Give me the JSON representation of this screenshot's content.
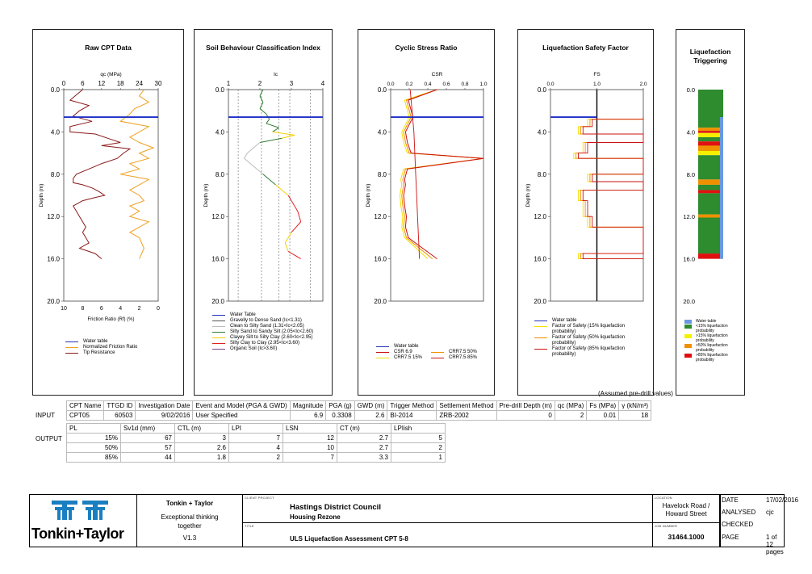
{
  "panels": {
    "raw": {
      "title": "Raw CPT Data",
      "top_axis": "qc (MPa)",
      "top_ticks": [
        "0",
        "6",
        "12",
        "18",
        "24",
        "30"
      ],
      "bottom_axis": "Friction Ratio (Rf) (%)",
      "bottom_ticks": [
        "10",
        "8",
        "6",
        "4",
        "2",
        "0"
      ]
    },
    "sbt": {
      "title": "Soil Behaviour Classification Index",
      "top_axis": "Ic",
      "top_ticks": [
        "1",
        "2",
        "3",
        "4"
      ]
    },
    "csr": {
      "title": "Cyclic Stress Ratio",
      "top_axis": "CSR",
      "top_ticks": [
        "0.0",
        "0.2",
        "0.4",
        "0.6",
        "0.8",
        "1.0"
      ]
    },
    "fs": {
      "title": "Liquefaction Safety Factor",
      "top_axis": "FS",
      "top_ticks": [
        "0.0",
        "1.0",
        "2.0"
      ]
    },
    "trig": {
      "title": "Liquefaction Triggering"
    }
  },
  "depth_label": "Depth (m)",
  "depth_ticks": [
    "0.0",
    "4.0",
    "8.0",
    "12.0",
    "16.0",
    "20.0"
  ],
  "legends": {
    "raw": [
      {
        "label": "Water table",
        "color": "#2233bb"
      },
      {
        "label": "Normalized Friction Ratio",
        "color": "#f0a020"
      },
      {
        "label": "Tip Resistance",
        "color": "#8b1a1a"
      }
    ],
    "sbt": [
      {
        "label": "Water Table",
        "color": "#2233bb"
      },
      {
        "label": "Gravelly to Dense Sand (Ic<1.31)",
        "color": "#555555"
      },
      {
        "label": "Clean to Silty Sand (1.31<Ic<2.05)",
        "color": "#bbbbbb"
      },
      {
        "label": "Silty Sand to Sandy Silt (2.05<Ic<2.60)",
        "color": "#2e7d32"
      },
      {
        "label": "Clayey Silt to Silty Clay (2.60<Ic<2.95)",
        "color": "#f5d000"
      },
      {
        "label": "Silty Clay to Clay (2.95<Ic<3.60)",
        "color": "#dd2222"
      },
      {
        "label": "Organic Soil (Ic>3.60)",
        "color": "#7b3f8a"
      }
    ],
    "csr": [
      {
        "label": "Water table",
        "color": "#2233bb"
      },
      {
        "label": "CSR 6.9",
        "color": "#cc1111"
      },
      {
        "label": "CRR7.5 15%",
        "color": "#f5e000"
      },
      {
        "label": "CRR7.5 50%",
        "color": "#f09000"
      },
      {
        "label": "CRR7.5 85%",
        "color": "#cc1111"
      }
    ],
    "fs": [
      {
        "label": "Water table",
        "color": "#2233bb"
      },
      {
        "label": "Factor of Safety (15% liquefaction probability)",
        "color": "#f5e000"
      },
      {
        "label": "Factor of Safety (50% liquefaction probability)",
        "color": "#f09000"
      },
      {
        "label": "Factor of Safety (85% liquefaction probability)",
        "color": "#cc1111"
      }
    ],
    "trig": [
      {
        "label": "Water table",
        "color": "#6a98e0"
      },
      {
        "label": "<15% liquefaction probability",
        "color": "#2e8b2e"
      },
      {
        "label": ">15% liquefaction probability",
        "color": "#f5f000"
      },
      {
        "label": ">50% liquefaction probability",
        "color": "#f09000"
      },
      {
        "label": ">85% liquefaction probability",
        "color": "#e01010"
      }
    ]
  },
  "chart_data": [
    {
      "type": "line",
      "title": "Raw CPT Data",
      "xlabel": "qc (MPa)",
      "xlabel2": "Friction Ratio (Rf) (%)",
      "ylabel": "Depth (m)",
      "xlim": [
        0,
        30
      ],
      "x2lim": [
        10,
        0
      ],
      "ylim": [
        20,
        0
      ],
      "water_table_depth": 2.6,
      "series": [
        {
          "name": "Tip Resistance",
          "x": [
            6,
            4,
            2,
            8,
            5,
            3,
            9,
            2,
            2,
            10,
            14,
            18,
            12,
            21,
            19,
            17,
            12,
            8,
            4,
            3,
            3,
            6,
            9,
            11,
            13,
            10,
            6,
            3,
            4,
            5,
            6,
            7,
            6,
            7,
            8,
            5,
            10,
            12
          ],
          "y": [
            0.0,
            0.5,
            1.0,
            1.5,
            2.0,
            2.5,
            3.0,
            3.5,
            4.0,
            4.2,
            4.6,
            5.0,
            5.3,
            5.6,
            6.0,
            6.5,
            7.0,
            7.5,
            8.0,
            8.4,
            8.8,
            9.0,
            9.3,
            9.6,
            10.0,
            10.2,
            10.5,
            11.0,
            11.5,
            12.0,
            12.5,
            13.0,
            13.5,
            14.0,
            14.5,
            15.0,
            15.5,
            16.0
          ]
        },
        {
          "name": "Normalized Friction Ratio",
          "x": [
            1.5,
            2,
            1,
            2.5,
            3,
            4,
            1,
            2,
            3,
            2,
            0.5,
            2,
            1,
            3,
            2,
            4,
            1,
            2,
            3,
            2,
            1.5,
            3,
            2,
            3,
            1,
            2,
            3,
            2,
            1.5,
            2
          ],
          "y": [
            0.0,
            0.6,
            1.2,
            1.8,
            2.3,
            3.0,
            3.5,
            4.0,
            4.5,
            5.0,
            5.5,
            6.0,
            6.5,
            7.0,
            7.5,
            8.0,
            8.5,
            9.0,
            9.5,
            10.0,
            10.5,
            11.0,
            11.5,
            12.0,
            12.5,
            13.0,
            13.5,
            14.0,
            15.0,
            16.0
          ]
        }
      ]
    },
    {
      "type": "line",
      "title": "Soil Behaviour Classification Index",
      "xlabel": "Ic",
      "ylabel": "Depth (m)",
      "xlim": [
        1,
        4
      ],
      "ylim": [
        20,
        0
      ],
      "water_table_depth": 2.6,
      "series": [
        {
          "name": "Ic",
          "x": [
            2.1,
            2.0,
            2.1,
            2.0,
            2.2,
            2.3,
            2.2,
            2.6,
            2.4,
            3.1,
            2.7,
            2.0,
            1.8,
            1.6,
            1.5,
            1.7,
            1.9,
            2.1,
            2.3,
            2.5,
            2.7,
            2.9,
            3.0,
            3.1,
            3.2,
            3.3,
            3.0,
            2.8,
            2.9,
            3.3
          ],
          "y": [
            0.0,
            0.6,
            1.2,
            1.8,
            2.3,
            2.8,
            3.2,
            3.6,
            4.0,
            4.3,
            4.6,
            5.0,
            5.5,
            6.0,
            6.5,
            7.0,
            7.5,
            8.0,
            8.5,
            9.0,
            9.5,
            10.0,
            10.5,
            11.0,
            11.5,
            12.5,
            13.5,
            14.5,
            15.3,
            16.0
          ]
        }
      ]
    },
    {
      "type": "line",
      "title": "Cyclic Stress Ratio",
      "xlabel": "CSR",
      "ylabel": "Depth (m)",
      "xlim": [
        0,
        1
      ],
      "ylim": [
        20,
        0
      ],
      "water_table_depth": 2.6,
      "series": [
        {
          "name": "CSR 6.9",
          "x": [
            0.21,
            0.23,
            0.25,
            0.26,
            0.27,
            0.28,
            0.29,
            0.3,
            0.31
          ],
          "y": [
            0,
            2,
            4,
            6,
            8,
            10,
            12,
            14,
            16
          ]
        },
        {
          "name": "CRR7.5 15%",
          "x": [
            0.5,
            0.15,
            0.2,
            0.12,
            0.14,
            0.18,
            1.0,
            0.14,
            0.11,
            0.12,
            0.1,
            0.11,
            0.13,
            0.12,
            0.15,
            0.4
          ],
          "y": [
            0,
            1,
            2.6,
            4,
            5,
            6,
            6.5,
            7.5,
            8.5,
            9,
            10,
            11,
            12,
            13,
            14,
            16
          ]
        },
        {
          "name": "CRR7.5 50%",
          "x": [
            0.5,
            0.17,
            0.22,
            0.14,
            0.16,
            0.2,
            1.0,
            0.16,
            0.13,
            0.14,
            0.12,
            0.13,
            0.15,
            0.14,
            0.17,
            0.45
          ],
          "y": [
            0,
            1,
            2.6,
            4,
            5,
            6,
            6.5,
            7.5,
            8.5,
            9,
            10,
            11,
            12,
            13,
            14,
            16
          ]
        },
        {
          "name": "CRR7.5 85%",
          "x": [
            0.5,
            0.19,
            0.24,
            0.16,
            0.18,
            0.22,
            1.0,
            0.18,
            0.15,
            0.16,
            0.14,
            0.15,
            0.17,
            0.16,
            0.19,
            0.5
          ],
          "y": [
            0,
            1,
            2.6,
            4,
            5,
            6,
            6.5,
            7.5,
            8.5,
            9,
            10,
            11,
            12,
            13,
            14,
            16
          ]
        }
      ]
    },
    {
      "type": "line",
      "title": "Liquefaction Safety Factor",
      "xlabel": "FS",
      "ylabel": "Depth (m)",
      "xlim": [
        0,
        2
      ],
      "ylim": [
        20,
        0
      ],
      "water_table_depth": 2.6,
      "series": [
        {
          "name": "Factor of Safety (15% liquefaction probability)",
          "x": [
            2,
            0.8,
            0.6,
            2,
            0.7,
            0.5,
            2,
            0.8,
            2,
            0.6,
            0.7,
            0.8,
            2,
            0.6,
            2
          ],
          "y": [
            2.6,
            2.8,
            3.5,
            4.2,
            5,
            6,
            6.5,
            8,
            8.7,
            9.5,
            10.5,
            12,
            13,
            15.5,
            16
          ]
        },
        {
          "name": "Factor of Safety (50% liquefaction probability)",
          "x": [
            2,
            0.85,
            0.65,
            2,
            0.75,
            0.55,
            2,
            0.85,
            2,
            0.65,
            0.75,
            0.85,
            2,
            0.65,
            2
          ],
          "y": [
            2.6,
            2.8,
            3.5,
            4.2,
            5,
            6,
            6.5,
            8,
            8.7,
            9.5,
            10.5,
            12,
            13,
            15.5,
            16
          ]
        },
        {
          "name": "Factor of Safety (85% liquefaction probability)",
          "x": [
            2,
            0.9,
            0.7,
            2,
            0.8,
            0.6,
            2,
            0.9,
            2,
            0.7,
            0.8,
            0.9,
            2,
            0.7,
            2
          ],
          "y": [
            2.6,
            2.8,
            3.5,
            4.2,
            5,
            6,
            6.5,
            8,
            8.7,
            9.5,
            10.5,
            12,
            13,
            15.5,
            16
          ]
        }
      ]
    },
    {
      "type": "bar",
      "title": "Liquefaction Triggering",
      "ylabel": "",
      "ylim": [
        20,
        0
      ],
      "water_table_depth": 2.6,
      "series": [
        {
          "name": "Liquefaction probability bands",
          "segments": [
            {
              "from": 0,
              "to": 3.6,
              "class": "<15%"
            },
            {
              "from": 3.6,
              "to": 3.9,
              "class": ">50%"
            },
            {
              "from": 3.9,
              "to": 4.1,
              "class": ">85%"
            },
            {
              "from": 4.1,
              "to": 4.5,
              "class": ">15%"
            },
            {
              "from": 4.5,
              "to": 4.9,
              "class": "<15%"
            },
            {
              "from": 4.9,
              "to": 5.3,
              "class": ">85%"
            },
            {
              "from": 5.3,
              "to": 5.8,
              "class": ">50%"
            },
            {
              "from": 5.8,
              "to": 6.2,
              "class": ">15%"
            },
            {
              "from": 6.2,
              "to": 8.5,
              "class": "<15%"
            },
            {
              "from": 8.5,
              "to": 9.0,
              "class": ">50%"
            },
            {
              "from": 9.0,
              "to": 9.5,
              "class": "<15%"
            },
            {
              "from": 9.5,
              "to": 9.8,
              "class": ">85%"
            },
            {
              "from": 9.8,
              "to": 11.8,
              "class": "<15%"
            },
            {
              "from": 11.8,
              "to": 12.1,
              "class": ">50%"
            },
            {
              "from": 12.1,
              "to": 15.5,
              "class": "<15%"
            },
            {
              "from": 15.5,
              "to": 16.0,
              "class": ">85%"
            }
          ]
        }
      ]
    }
  ],
  "assumed_note": "(Assumed pre-drill values)",
  "input_table": {
    "row_label": "INPUT",
    "headers": [
      "CPT Name",
      "TTGD ID",
      "Investigation Date",
      "Event and Model (PGA & GWD)",
      "Magnitude",
      "PGA (g)",
      "GWD (m)",
      "Trigger Method",
      "Settlement Method",
      "Pre-drill Depth (m)",
      "qc (MPa)",
      "Fs (MPa)",
      "γ (kN/m³)"
    ],
    "values": [
      "CPT05",
      "60503",
      "9/02/2016",
      "User Specified",
      "6.9",
      "0.3308",
      "2.6",
      "BI-2014",
      "ZRB-2002",
      "0",
      "2",
      "0.01",
      "18"
    ]
  },
  "output_table": {
    "row_label": "OUTPUT",
    "headers": [
      "PL",
      "Sv1d (mm)",
      "CTL (m)",
      "LPI",
      "LSN",
      "CT (m)",
      "LPIish"
    ],
    "rows": [
      [
        "15%",
        "67",
        "3",
        "7",
        "12",
        "2.7",
        "5"
      ],
      [
        "50%",
        "57",
        "2.6",
        "4",
        "10",
        "2.7",
        "2"
      ],
      [
        "85%",
        "44",
        "1.8",
        "2",
        "7",
        "3.3",
        "1"
      ]
    ]
  },
  "title_block": {
    "company": "Tonkin + Taylor",
    "tagline": "Exceptional thinking together",
    "version": "V1.3",
    "logo_text": "Tonkin+Taylor",
    "client_label": "CLIENT  PROJECT",
    "client": "Hastings District Council",
    "project": "Housing Rezone",
    "title_label": "TITLE",
    "title": "ULS Liquefaction Assessment CPT 5-8",
    "location_label": "LOCATION",
    "location": "Havelock Road / Howard Street",
    "job_label": "JOB NUMBER",
    "job": "31464.1000",
    "date_label": "DATE",
    "date": "17/02/2016",
    "analysed_label": "ANALYSED",
    "analysed": "cjc",
    "checked_label": "CHECKED",
    "checked": "",
    "page_label": "PAGE",
    "page": "1 of 12 pages"
  }
}
